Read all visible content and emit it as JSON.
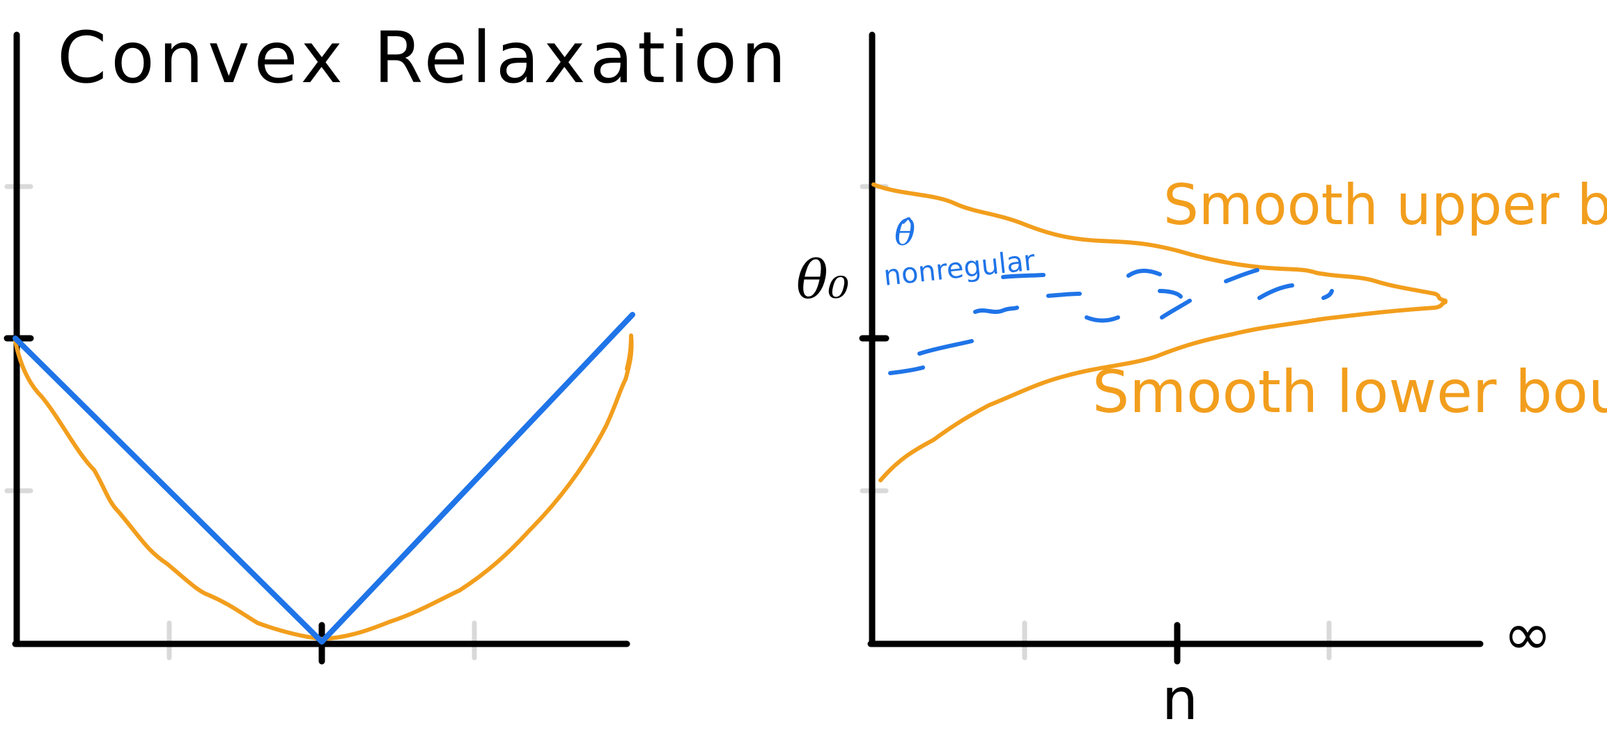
{
  "colors": {
    "ink": "#000000",
    "blue": "#1f74e8",
    "orange": "#f29e1d",
    "tick_gray": "#d9d9d9"
  },
  "left_panel": {
    "title": "Convex Relaxation",
    "curves": [
      "blue-v-curve",
      "orange-convex-curve"
    ]
  },
  "right_panel": {
    "y_label": "θ₀",
    "x_label": "n",
    "x_end_label": "∞",
    "estimator_symbol": "θ̂",
    "nonregular_label": "nonregular",
    "upper_label": "Smooth upper bound",
    "lower_label": "Smooth lower bound"
  }
}
